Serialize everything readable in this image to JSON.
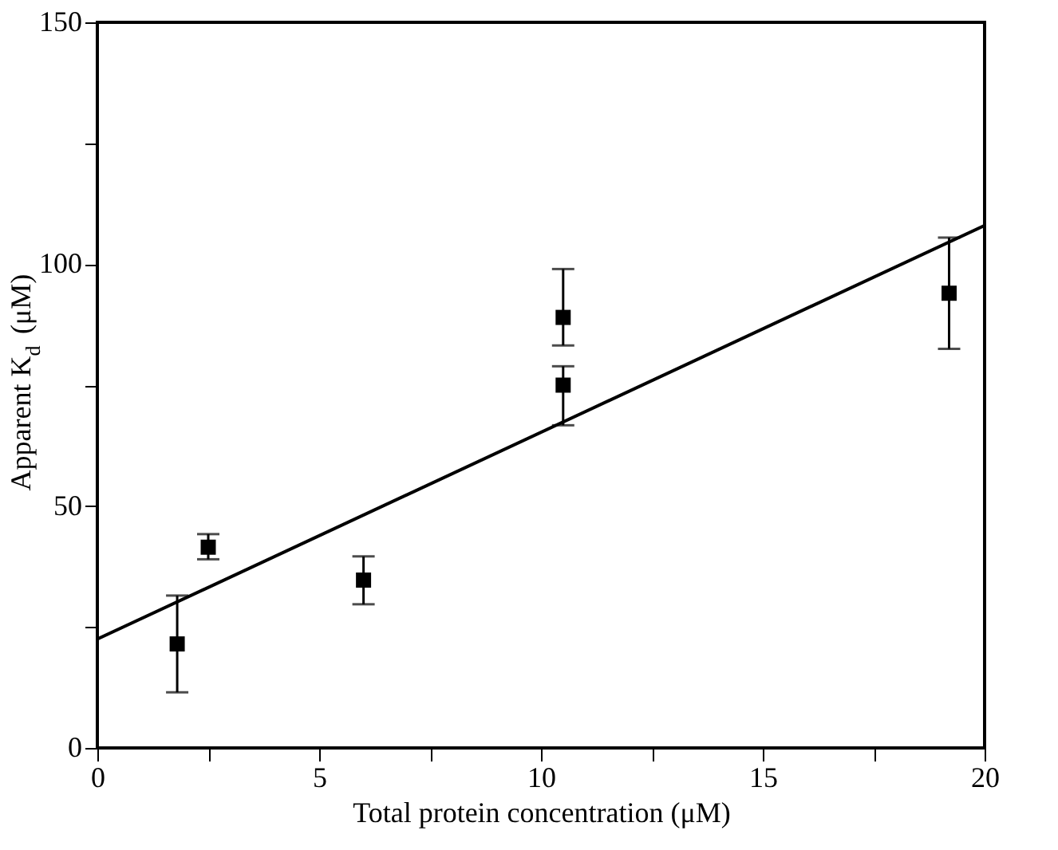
{
  "chart_data": {
    "type": "scatter",
    "xlabel": "Total protein concentration (μM)",
    "ylabel": "Apparent K$_{d}$ (μM)",
    "xlim": [
      0,
      20
    ],
    "ylim": [
      0,
      150
    ],
    "xticks": [
      0,
      {
        "value": 2.5,
        "label": null
      },
      5,
      {
        "value": 7.5,
        "label": null
      },
      10,
      {
        "value": 12.5,
        "label": null
      },
      15,
      {
        "value": 17.5,
        "label": null
      },
      20
    ],
    "yticks": [
      0,
      {
        "value": 25,
        "label": null
      },
      50,
      {
        "value": 75,
        "label": null
      },
      100,
      {
        "value": 125,
        "label": null
      },
      150
    ],
    "grid": false,
    "legend": false,
    "marker": "square",
    "series": [
      {
        "type": "scatter",
        "color": "#000000",
        "x": [
          1.8,
          2.5,
          6.0,
          10.5,
          10.5,
          19.2
        ],
        "values": [
          21.5,
          41.5,
          34.7,
          89,
          75,
          94
        ],
        "errors": [
          [
            11.5,
            31.5
          ],
          [
            39,
            44.2
          ],
          [
            29.7,
            39.6
          ],
          [
            83.2,
            99
          ],
          [
            66.7,
            78.9
          ],
          [
            82.5,
            105.5
          ]
        ]
      },
      {
        "type": "line",
        "color": "#000000",
        "line_style": "solid",
        "marker": "none",
        "x": [
          0,
          20
        ],
        "values": [
          22.5,
          108
        ]
      }
    ]
  }
}
